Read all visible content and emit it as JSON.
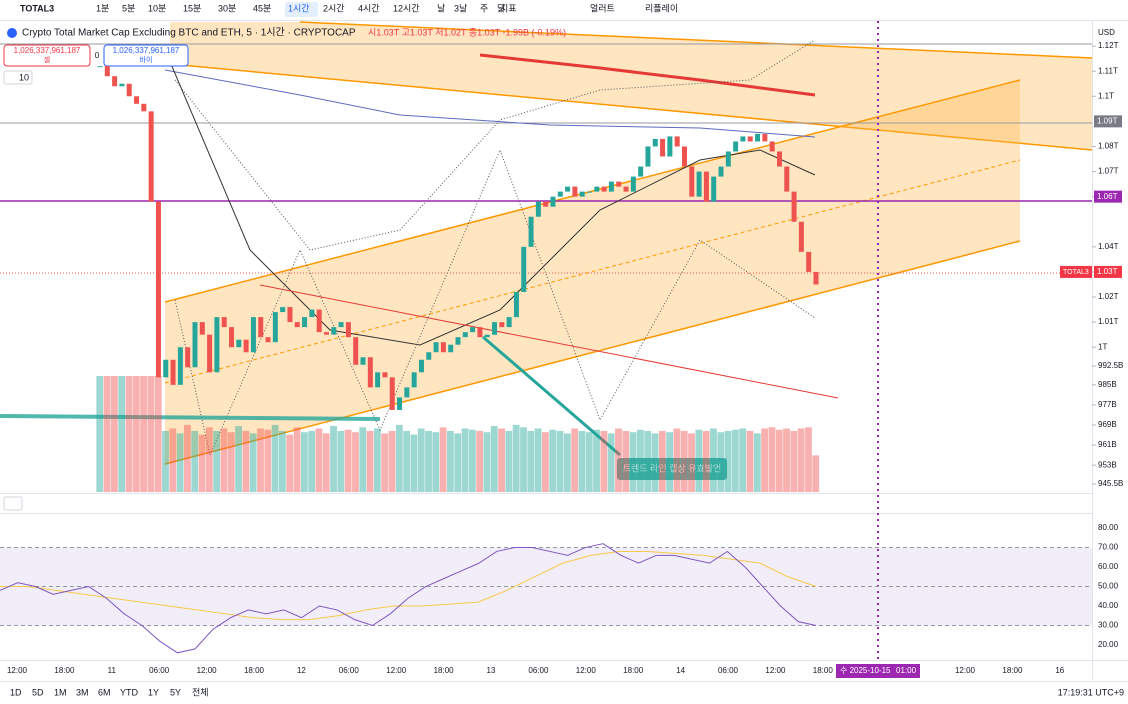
{
  "toolbar": {
    "symbol": "TOTAL3",
    "intervals": [
      "1분",
      "5분",
      "10분",
      "15분",
      "30분",
      "45분",
      "1시간",
      "2시간",
      "4시간",
      "12시간",
      "날",
      "3날",
      "주",
      "달"
    ],
    "indicators": "지표",
    "alert": "얼러트",
    "replay": "리플레이"
  },
  "legend": {
    "title": "Crypto Total Market Cap Excluding BTC and ETH, 5 · 1시간 · CRYPTOCAP",
    "ohlc": "시1.03T 고1.03T 저1.02T 종1.03T -1.99B (-0.19%)",
    "sell_price": "1,026,337,961,187",
    "sell": "셀",
    "spread": "0",
    "buy_price": "1,026,337,961,187",
    "buy": "바이",
    "indicator_count": "10"
  },
  "price_axis": {
    "currency": "USD",
    "ylim": [
      942.3,
      1129.6
    ],
    "ticks": [
      {
        "value": 1120,
        "label": "1.12T"
      },
      {
        "value": 1110,
        "label": "1.11T"
      },
      {
        "value": 1100,
        "label": "1.1T"
      },
      {
        "value": 1080,
        "label": "1.08T"
      },
      {
        "value": 1070,
        "label": "1.07T"
      },
      {
        "value": 1060,
        "label": "1.06T"
      },
      {
        "value": 1040,
        "label": "1.04T"
      },
      {
        "value": 1030,
        "label": "1.03T"
      },
      {
        "value": 1020,
        "label": "1.02T"
      },
      {
        "value": 1010,
        "label": "1.01T"
      },
      {
        "value": 1000,
        "label": "1T"
      },
      {
        "value": 992.5,
        "label": "992.5B"
      },
      {
        "value": 985,
        "label": "985B"
      },
      {
        "value": 977,
        "label": "977B"
      },
      {
        "value": 969,
        "label": "969B"
      },
      {
        "value": 961,
        "label": "961B"
      },
      {
        "value": 953,
        "label": "953B"
      },
      {
        "value": 945.5,
        "label": "945.5B"
      }
    ],
    "labels": [
      {
        "value": 1090,
        "label": "1.09T"
      },
      {
        "value": 1060,
        "label": "1.06T"
      },
      {
        "value": 1030,
        "name": "TOTAL3",
        "label": "1.03T"
      }
    ]
  },
  "candles": [
    1112,
    1108,
    1104,
    1105,
    1100,
    1097,
    1094,
    1058,
    988,
    995,
    985,
    1000,
    992,
    1010,
    1005,
    990,
    1012,
    1008,
    1000,
    1003,
    998,
    1012,
    1004,
    1002,
    1014,
    1016,
    1010,
    1008,
    1012,
    1015,
    1006,
    1005,
    1008,
    1010,
    1004,
    993,
    996,
    984,
    990,
    988,
    975,
    980,
    984,
    990,
    995,
    998,
    1002,
    998,
    1001,
    1004,
    1006,
    1008,
    1004,
    1005,
    1010,
    1008,
    1012,
    1022,
    1040,
    1052,
    1058,
    1056,
    1060,
    1062,
    1064,
    1060,
    1062,
    1062,
    1064,
    1062,
    1066,
    1064,
    1062,
    1068,
    1072,
    1080,
    1083,
    1076,
    1084,
    1080,
    1072,
    1060,
    1070,
    1058,
    1068,
    1072,
    1078,
    1082,
    1084,
    1082,
    1085,
    1082,
    1078,
    1072,
    1062,
    1050,
    1038,
    1030,
    1025
  ],
  "volume": [
    95,
    95,
    95,
    95,
    95,
    95,
    95,
    95,
    95,
    50,
    52,
    48,
    55,
    50,
    47,
    53,
    50,
    52,
    49,
    54,
    50,
    48,
    52,
    51,
    55,
    50,
    47,
    53,
    49,
    50,
    52,
    48,
    54,
    50,
    51,
    49,
    53,
    50,
    52,
    48,
    50,
    55,
    50,
    47,
    52,
    50,
    49,
    53,
    50,
    48,
    52,
    51,
    50,
    49,
    54,
    52,
    50,
    55,
    53,
    50,
    52,
    49,
    51,
    50,
    48,
    52,
    50,
    49,
    51,
    50,
    48,
    52,
    50,
    49,
    51,
    50,
    48,
    50,
    49,
    52,
    50,
    48,
    51,
    50,
    52,
    49,
    50,
    51,
    52,
    50,
    48,
    52,
    53,
    51,
    52,
    50,
    52,
    53,
    30
  ],
  "annotation": "트렌드 라인 캡상 유효발언",
  "rsi": {
    "ylim": [
      12.3,
      86.7
    ],
    "ticks": [
      {
        "value": 80,
        "label": "80.00"
      },
      {
        "value": 70,
        "label": "70.00"
      },
      {
        "value": 60,
        "label": "60.00"
      },
      {
        "value": 50,
        "label": "50.00"
      },
      {
        "value": 40,
        "label": "40.00"
      },
      {
        "value": 30,
        "label": "30.00"
      },
      {
        "value": 20,
        "label": "20.00"
      }
    ],
    "values": [
      48,
      52,
      50,
      46,
      48,
      50,
      44,
      36,
      30,
      22,
      16,
      18,
      28,
      34,
      38,
      36,
      38,
      34,
      40,
      38,
      33,
      30,
      36,
      44,
      50,
      54,
      58,
      62,
      68,
      70,
      70,
      68,
      66,
      70,
      72,
      66,
      62,
      66,
      66,
      64,
      62,
      68,
      60,
      50,
      40,
      32,
      30
    ],
    "ma": [
      50,
      50,
      48,
      46,
      44,
      42,
      40,
      38,
      36,
      34,
      33,
      33,
      35,
      38,
      40,
      40,
      41,
      42,
      48,
      55,
      62,
      66,
      68,
      68,
      67,
      66,
      64,
      62,
      55,
      50
    ]
  },
  "time_axis": {
    "labels": [
      "12:00",
      "18:00",
      "11",
      "06:00",
      "12:00",
      "18:00",
      "12",
      "06:00",
      "12:00",
      "18:00",
      "13",
      "06:00",
      "12:00",
      "18:00",
      "14",
      "06:00",
      "12:00",
      "18:00",
      null,
      null,
      "12:00",
      "18:00",
      "16"
    ],
    "cursor": "수 2025-10-15",
    "cursor_time": "01:00"
  },
  "footer": {
    "ranges": [
      "1D",
      "5D",
      "1M",
      "3M",
      "6M",
      "YTD",
      "1Y",
      "5Y",
      "전체"
    ],
    "clock": "17:19:31 UTC+9"
  }
}
